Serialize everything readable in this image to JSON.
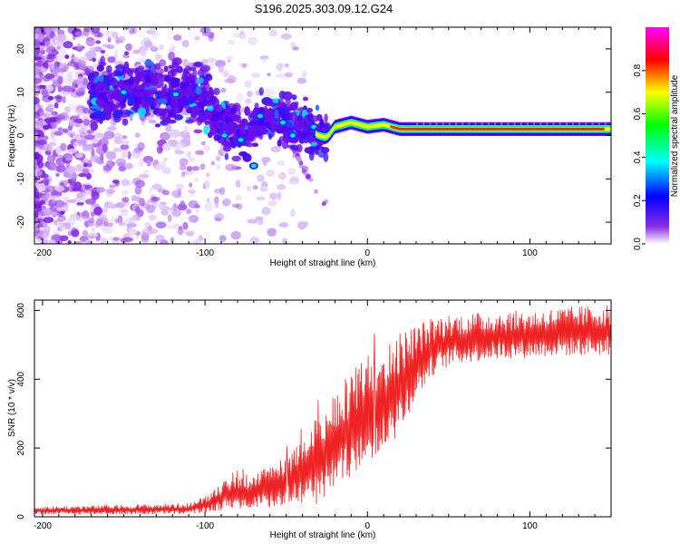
{
  "chart_data": [
    {
      "type": "heatmap",
      "title": "S196.2025.303.09.12.G24",
      "xlabel": "Height of straight line (km)",
      "ylabel": "Frequency (Hz)",
      "xlim": [
        -205,
        150
      ],
      "ylim": [
        -25,
        25
      ],
      "xticks": [
        -200,
        -100,
        0,
        100
      ],
      "yticks": [
        -20,
        -10,
        0,
        10,
        20
      ],
      "colorbar": {
        "label": "Normalized spectral amplitude",
        "range": [
          0,
          1
        ],
        "ticks": [
          0.0,
          0.2,
          0.4,
          0.6,
          0.8
        ],
        "colors": [
          "#ffffff",
          "#7a00ff",
          "#0000ff",
          "#00ffff",
          "#00ff00",
          "#ffff00",
          "#ff0000",
          "#ff00ff"
        ]
      },
      "ridge": {
        "x": [
          -160,
          -140,
          -120,
          -110,
          -100,
          -90,
          -80,
          -70,
          -60,
          -50,
          -40,
          -30,
          -25,
          -20,
          -10,
          0,
          10,
          20,
          50,
          100,
          150
        ],
        "y": [
          9,
          10,
          9,
          10,
          8,
          3,
          1,
          2,
          5,
          3,
          2,
          0,
          -0.5,
          2,
          3,
          2,
          2.5,
          1.5,
          1.5,
          1.5,
          1.5
        ]
      }
    },
    {
      "type": "line",
      "xlabel": "Height of straight line (km)",
      "ylabel": "SNR (10 * v/v)",
      "xlim": [
        -205,
        150
      ],
      "ylim": [
        0,
        630
      ],
      "xticks": [
        -200,
        -100,
        0,
        100
      ],
      "yticks": [
        0,
        200,
        400,
        600
      ],
      "line_color": "#ee2222",
      "envelope": {
        "x": [
          -205,
          -150,
          -110,
          -100,
          -90,
          -80,
          -70,
          -60,
          -50,
          -40,
          -30,
          -20,
          -10,
          0,
          10,
          20,
          30,
          40,
          50,
          60,
          80,
          100,
          120,
          150
        ],
        "low": [
          5,
          5,
          5,
          10,
          15,
          20,
          15,
          20,
          25,
          30,
          20,
          60,
          100,
          150,
          170,
          230,
          330,
          400,
          430,
          440,
          450,
          455,
          460,
          460
        ],
        "high": [
          30,
          35,
          40,
          60,
          100,
          120,
          130,
          150,
          180,
          230,
          300,
          370,
          420,
          480,
          490,
          540,
          560,
          580,
          590,
          590,
          600,
          600,
          610,
          620
        ]
      }
    }
  ]
}
